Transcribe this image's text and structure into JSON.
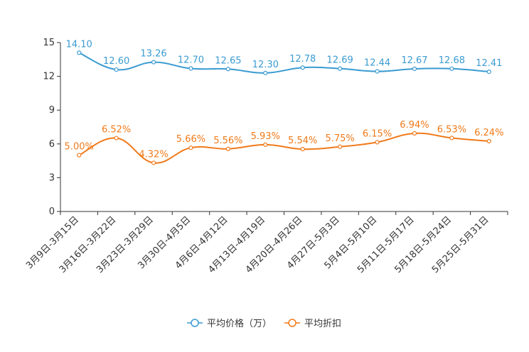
{
  "chart_data": {
    "type": "line",
    "title": "",
    "xlabel": "",
    "ylabel": "",
    "ylim": [
      0,
      15
    ],
    "yticks": [
      0,
      3,
      6,
      9,
      12,
      15
    ],
    "categories": [
      "3月9日-3月15日",
      "3月16日-3月22日",
      "3月23日-3月29日",
      "3月30日-4月5日",
      "4月6日-4月12日",
      "4月13日-4月19日",
      "4月20日-4月26日",
      "4月27日-5月3日",
      "5月4日-5月10日",
      "5月11日-5月17日",
      "5月18日-5月24日",
      "5月25日-5月31日"
    ],
    "series": [
      {
        "name": "平均价格（万）",
        "color": "#3a9bd1",
        "values": [
          14.1,
          12.6,
          13.26,
          12.7,
          12.65,
          12.3,
          12.78,
          12.69,
          12.44,
          12.67,
          12.68,
          12.41
        ],
        "labels": [
          "14.10",
          "12.60",
          "13.26",
          "12.70",
          "12.65",
          "12.30",
          "12.78",
          "12.69",
          "12.44",
          "12.67",
          "12.68",
          "12.41"
        ]
      },
      {
        "name": "平均折扣",
        "color": "#f07a1a",
        "values": [
          5.0,
          6.52,
          4.32,
          5.66,
          5.56,
          5.93,
          5.54,
          5.75,
          6.15,
          6.94,
          6.53,
          6.24
        ],
        "labels": [
          "5.00%",
          "6.52%",
          "4.32%",
          "5.66%",
          "5.56%",
          "5.93%",
          "5.54%",
          "5.75%",
          "6.15%",
          "6.94%",
          "6.53%",
          "6.24%"
        ]
      }
    ],
    "legend_position": "bottom-center",
    "grid": false
  }
}
